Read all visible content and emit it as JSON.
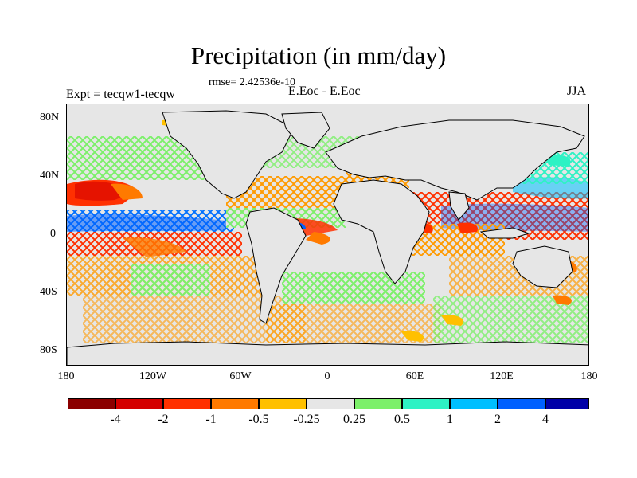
{
  "title": "Precipitation (in mm/day)",
  "rmse": "rmse= 2.42536e-10",
  "expt": "Expt = tecqw1-tecqw",
  "case": "E.Eoc - E.Eoc",
  "season": "JJA",
  "y_ticks": [
    "80N",
    "40N",
    "0",
    "40S",
    "80S"
  ],
  "x_ticks": [
    "180",
    "120W",
    "60W",
    "0",
    "60E",
    "120E",
    "180"
  ],
  "colorbar": {
    "colors": [
      "#8b0000",
      "#d40000",
      "#ff3000",
      "#ff7a00",
      "#ffc000",
      "#e6e6e6",
      "#7cf06a",
      "#2ef2c4",
      "#00bfff",
      "#0060ff",
      "#0000a8"
    ],
    "labels": [
      "-4",
      "-2",
      "-1",
      "-0.5",
      "-0.25",
      "0.25",
      "0.5",
      "1",
      "2",
      "4"
    ]
  },
  "colors": {
    "ocean_bg": "#e6e6e6",
    "coast": "#000000"
  }
}
